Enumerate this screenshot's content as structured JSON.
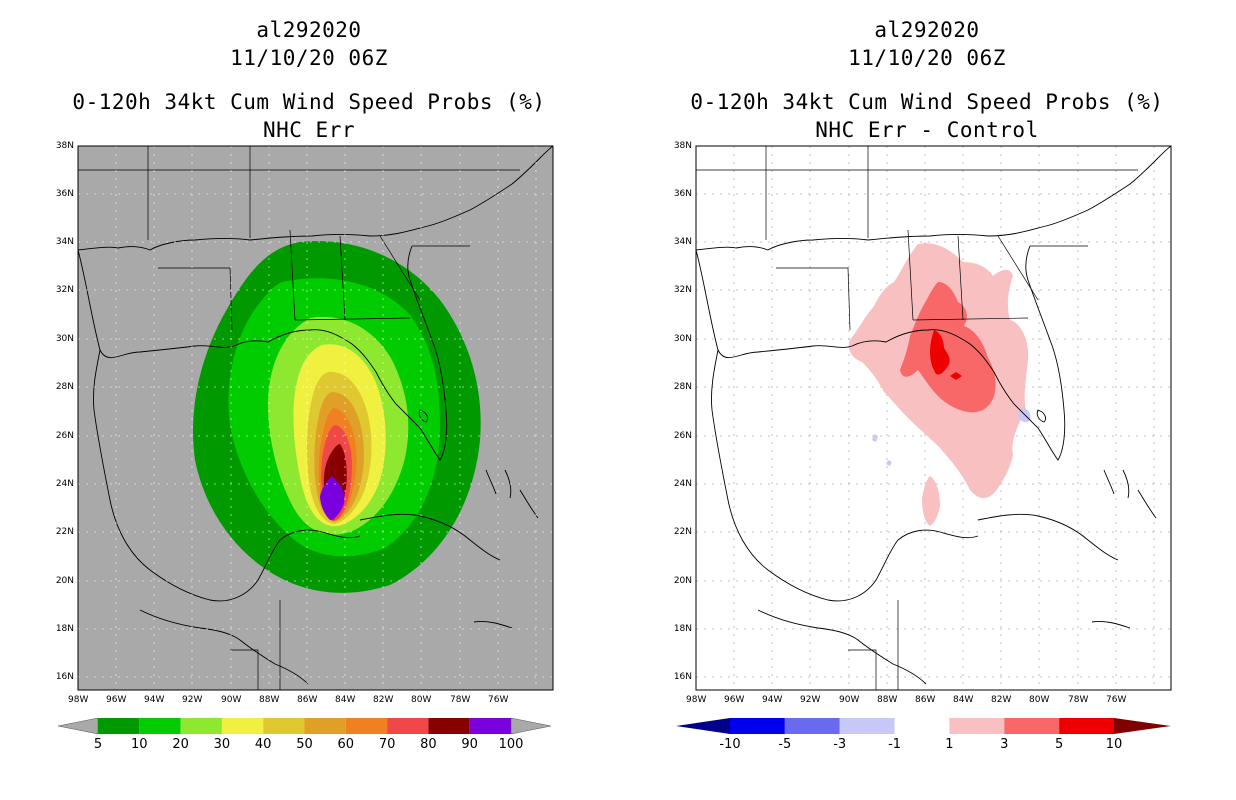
{
  "left": {
    "storm_id": "al292020",
    "datetime": "11/10/20 06Z",
    "product": "0-120h 34kt Cum Wind Speed Probs (%)",
    "subtitle": "NHC Err",
    "colorbar": {
      "labels": [
        "5",
        "10",
        "20",
        "30",
        "40",
        "50",
        "60",
        "70",
        "80",
        "90",
        "100"
      ],
      "colors": [
        "#009a00",
        "#00cc00",
        "#8ee830",
        "#f0f040",
        "#e0c830",
        "#e0a028",
        "#f08020",
        "#f04848",
        "#880000",
        "#7a00dd"
      ]
    }
  },
  "right": {
    "storm_id": "al292020",
    "datetime": "11/10/20 06Z",
    "product": "0-120h 34kt Cum Wind Speed Probs (%)",
    "subtitle": "NHC Err - Control",
    "colorbar": {
      "labels": [
        "-10",
        "-5",
        "-3",
        "-1",
        "1",
        "3",
        "5",
        "10"
      ],
      "colors": [
        "#00008c",
        "#0000ee",
        "#6a6af0",
        "#c8c8f8",
        "#ffffff",
        "#f8c0c0",
        "#f86868",
        "#ee0000",
        "#800000"
      ]
    }
  },
  "axes": {
    "lat_labels": [
      "38N",
      "36N",
      "34N",
      "32N",
      "30N",
      "28N",
      "26N",
      "24N",
      "22N",
      "20N",
      "18N",
      "16N"
    ],
    "lon_labels": [
      "98W",
      "96W",
      "94W",
      "92W",
      "90W",
      "88W",
      "86W",
      "84W",
      "82W",
      "80W",
      "78W",
      "76W"
    ]
  },
  "colors": {
    "land_sea_left": "#a9a9a9",
    "map_right_bg": "#ffffff",
    "coast": "#000000"
  }
}
